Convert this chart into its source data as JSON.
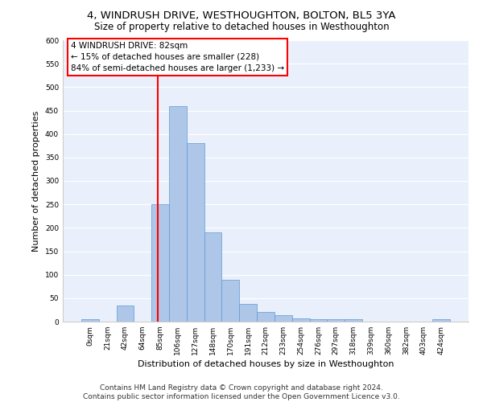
{
  "title": "4, WINDRUSH DRIVE, WESTHOUGHTON, BOLTON, BL5 3YA",
  "subtitle": "Size of property relative to detached houses in Westhoughton",
  "xlabel": "Distribution of detached houses by size in Westhoughton",
  "ylabel": "Number of detached properties",
  "categories": [
    "0sqm",
    "21sqm",
    "42sqm",
    "64sqm",
    "85sqm",
    "106sqm",
    "127sqm",
    "148sqm",
    "170sqm",
    "191sqm",
    "212sqm",
    "233sqm",
    "254sqm",
    "276sqm",
    "297sqm",
    "318sqm",
    "339sqm",
    "360sqm",
    "382sqm",
    "403sqm",
    "424sqm"
  ],
  "values": [
    5,
    0,
    35,
    0,
    250,
    460,
    380,
    190,
    90,
    38,
    20,
    13,
    7,
    6,
    5,
    6,
    0,
    0,
    0,
    0,
    5
  ],
  "bar_color": "#aec6e8",
  "bar_edge_color": "#5b9bd5",
  "background_color": "#eaf0fb",
  "grid_color": "#ffffff",
  "annotation_box_text_line1": "4 WINDRUSH DRIVE: 82sqm",
  "annotation_box_text_line2": "← 15% of detached houses are smaller (228)",
  "annotation_box_text_line3": "84% of semi-detached houses are larger (1,233) →",
  "annotation_box_color": "white",
  "annotation_box_edge_color": "red",
  "annotation_line_color": "red",
  "ylim": [
    0,
    600
  ],
  "yticks": [
    0,
    50,
    100,
    150,
    200,
    250,
    300,
    350,
    400,
    450,
    500,
    550,
    600
  ],
  "footer_line1": "Contains HM Land Registry data © Crown copyright and database right 2024.",
  "footer_line2": "Contains public sector information licensed under the Open Government Licence v3.0.",
  "title_fontsize": 9.5,
  "subtitle_fontsize": 8.5,
  "xlabel_fontsize": 8,
  "ylabel_fontsize": 8,
  "tick_fontsize": 6.5,
  "annotation_fontsize": 7.5,
  "footer_fontsize": 6.5
}
